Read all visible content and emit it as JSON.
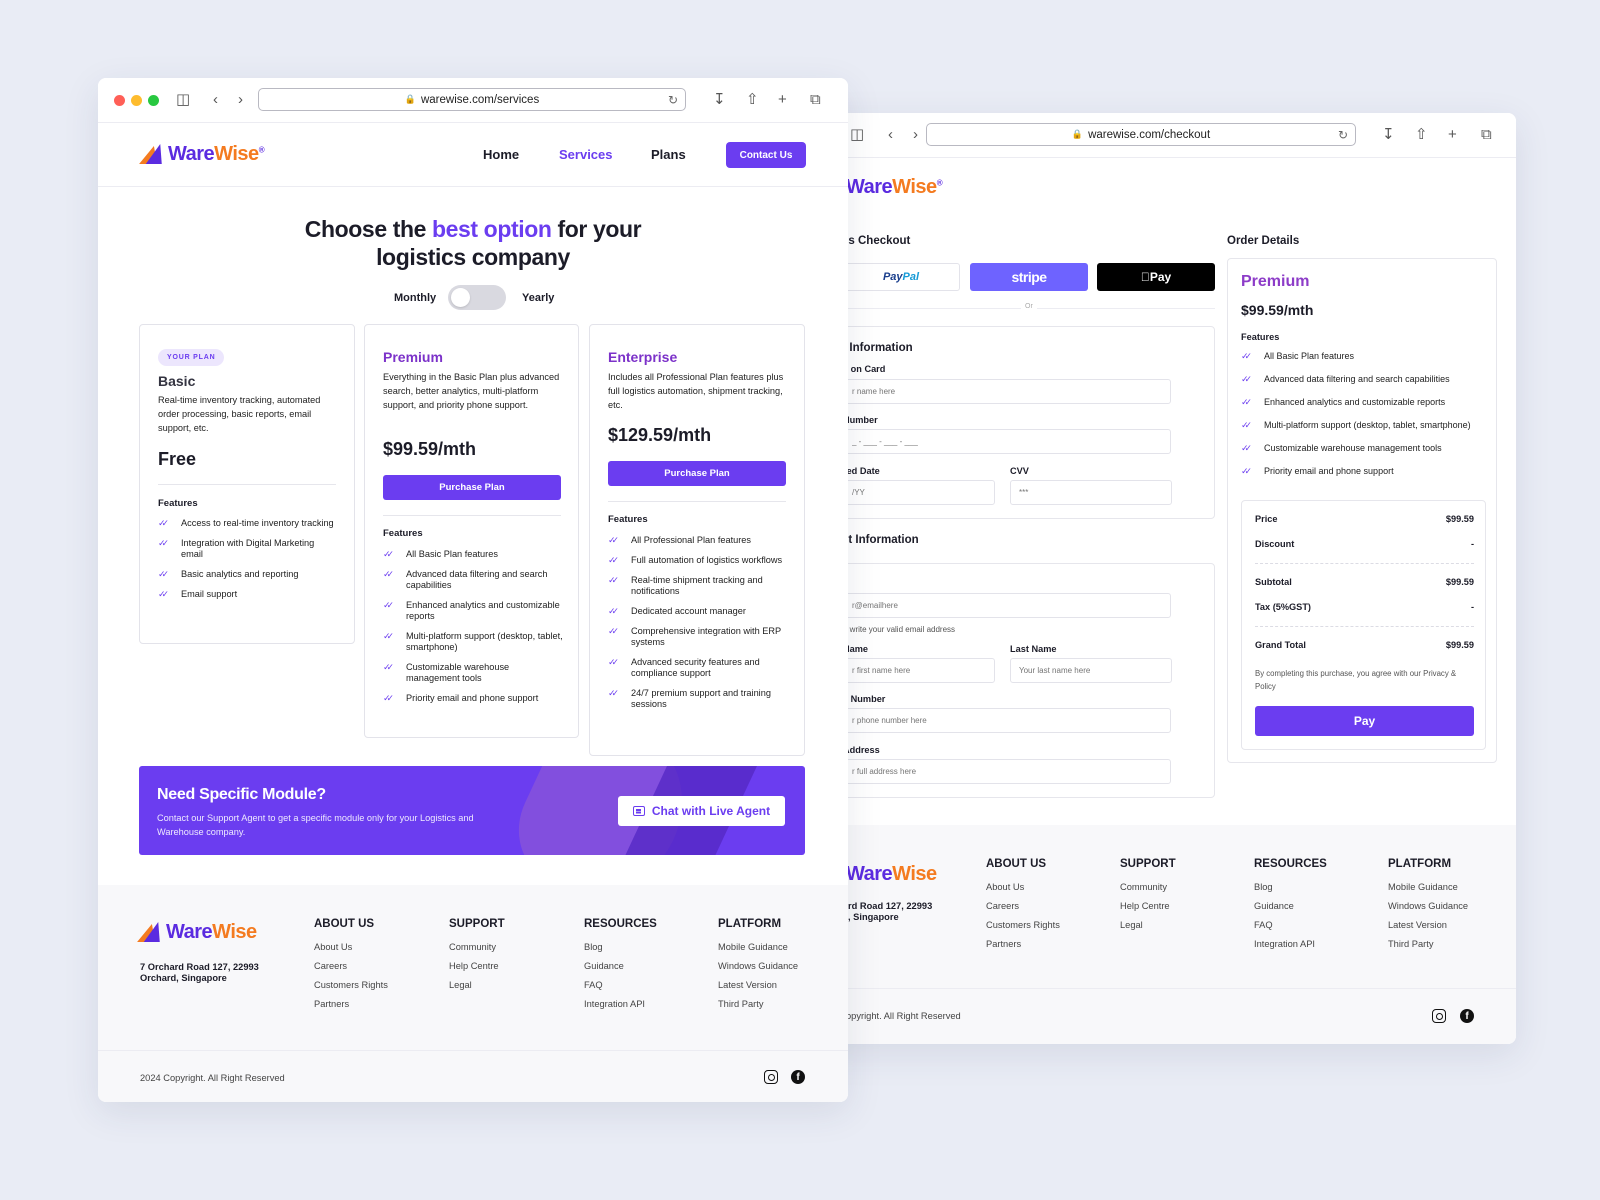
{
  "left": {
    "url": "warewise.com/services",
    "brand": {
      "part1": "Ware",
      "part2": "Wise",
      "mark": "®"
    },
    "nav": {
      "home": "Home",
      "services": "Services",
      "plans": "Plans",
      "contact": "Contact Us"
    },
    "hero": {
      "t1": "Choose the ",
      "highlight": "best option",
      "t2": " for your",
      "t3": "logistics company"
    },
    "billing": {
      "monthly": "Monthly",
      "yearly": "Yearly",
      "yearly_on": false
    },
    "plans": {
      "basic": {
        "badge": "YOUR PLAN",
        "name": "Basic",
        "desc": "Real-time inventory tracking, automated order processing, basic reports, email support, etc.",
        "price": "Free",
        "features_title": "Features",
        "features": [
          "Access to real-time inventory tracking",
          "Integration with Digital Marketing email",
          "Basic analytics and reporting",
          "Email support"
        ]
      },
      "premium": {
        "name": "Premium",
        "desc": "Everything in the Basic Plan plus advanced search, better analytics, multi-platform support, and priority phone support.",
        "price": "$99.59/mth",
        "button": "Purchase Plan",
        "features_title": "Features",
        "features": [
          "All Basic Plan features",
          "Advanced data filtering and search capabilities",
          "Enhanced analytics and customizable reports",
          "Multi-platform support (desktop, tablet, smartphone)",
          "Customizable warehouse management tools",
          "Priority email and phone support"
        ]
      },
      "enterprise": {
        "name": "Enterprise",
        "desc": "Includes all Professional Plan features plus full logistics automation, shipment tracking, etc.",
        "price": "$129.59/mth",
        "button": "Purchase Plan",
        "features_title": "Features",
        "features": [
          "All Professional Plan features",
          "Full automation of logistics workflows",
          "Real-time shipment tracking and notifications",
          "Dedicated account manager",
          "Comprehensive integration with ERP systems",
          "Advanced security features and compliance support",
          "24/7 premium support and training sessions"
        ]
      }
    },
    "banner": {
      "title": "Need Specific Module?",
      "subtitle": "Contact our Support Agent to get a specific module only for your Logistics and Warehouse company.",
      "button": "Chat with Live Agent"
    }
  },
  "footer": {
    "address1": "7 Orchard Road 127, 22993",
    "address2": "Orchard, Singapore",
    "about": {
      "title": "ABOUT US",
      "links": [
        "About Us",
        "Careers",
        "Customers Rights",
        "Partners"
      ]
    },
    "support": {
      "title": "SUPPORT",
      "links": [
        "Community",
        "Help Centre",
        "Legal"
      ]
    },
    "resources": {
      "title": "RESOURCES",
      "links": [
        "Blog",
        "Guidance",
        "FAQ",
        "Integration API"
      ]
    },
    "platform": {
      "title": "PLATFORM",
      "links": [
        "Mobile Guidance",
        "Windows Guidance",
        "Latest Version",
        "Third Party"
      ]
    },
    "copyright": "2024 Copyright. All Right Reserved",
    "copyright_cut": "opyright. All Right Reserved",
    "address1_cut": "rd Road 127, 22993",
    "address2_cut": ", Singapore"
  },
  "right": {
    "url": "warewise.com/checkout",
    "express_title": "ss Checkout",
    "paypal": {
      "p1": "Pay",
      "p2": "Pal"
    },
    "stripe": "stripe",
    "applepay": "Pay",
    "or": "Or",
    "card": {
      "title": "l Information",
      "name_label": "e on Card",
      "name_ph": "r name here",
      "number_label": " Number",
      "number_ph": "_ - ___ - ___ - ___",
      "expiry_label": "red Date",
      "expiry_ph": "/YY",
      "cvv_label": "CVV",
      "cvv_ph": "***"
    },
    "contact": {
      "title": "ct Information",
      "email_label": "l",
      "email_ph": "r@emailhere",
      "email_hint": "e write your valid email address",
      "first_label": " Name",
      "first_ph": "r first name here",
      "last_label": "Last Name",
      "last_ph": "Your last name here",
      "phone_label": "e Number",
      "phone_ph": "r phone number here",
      "address_label": "Address",
      "address_ph": "r full address here"
    },
    "order": {
      "title": "Order Details",
      "plan": "Premium",
      "price": "$99.59/mth",
      "features_title": "Features",
      "features": [
        "All Basic Plan features",
        "Advanced data filtering and search capabilities",
        "Enhanced analytics and customizable reports",
        "Multi-platform support (desktop, tablet, smartphone)",
        "Customizable warehouse management tools",
        "Priority email and phone support"
      ],
      "price_label": "Price",
      "price_value": "$99.59",
      "discount_label": "Discount",
      "discount_value": "-",
      "subtotal_label": "Subtotal",
      "subtotal_value": "$99.59",
      "tax_label": "Tax (5%GST)",
      "tax_value": "-",
      "total_label": "Grand Total",
      "total_value": "$99.59",
      "note": "By completing this purchase, you agree with our Privacy & Policy",
      "pay": "Pay"
    }
  },
  "colors": {
    "accent": "#6b3df0",
    "brand_orange": "#f47b20",
    "plan_purple": "#7c32c9"
  },
  "icons": [
    "sidebar-icon",
    "back-icon",
    "forward-icon",
    "lock-icon",
    "reload-icon",
    "download-icon",
    "share-icon",
    "new-tab-icon",
    "tabs-icon",
    "check-icon",
    "chat-icon",
    "instagram-icon",
    "facebook-icon",
    "apple-icon"
  ]
}
